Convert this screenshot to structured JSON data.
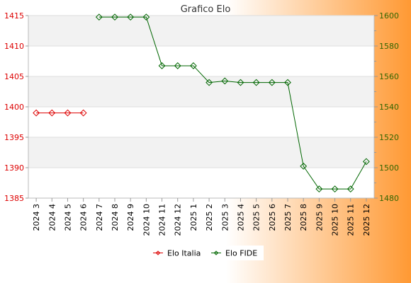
{
  "chart_data": {
    "type": "line",
    "title": "Grafico Elo",
    "categories": [
      "2024 3",
      "2024 4",
      "2024 5",
      "2024 6",
      "2024 7",
      "2024 8",
      "2024 9",
      "2024 10",
      "2024 11",
      "2024 12",
      "2025 1",
      "2025 2",
      "2025 3",
      "2025 4",
      "2025 5",
      "2025 6",
      "2025 7",
      "2025 8",
      "2025 9",
      "2025 10",
      "2025 11",
      "2025 12"
    ],
    "y_left": {
      "range": [
        1385,
        1415
      ],
      "ticks": [
        1385,
        1390,
        1395,
        1400,
        1405,
        1410,
        1415
      ],
      "color": "#dd0000"
    },
    "y_right": {
      "range": [
        1480,
        1600
      ],
      "ticks": [
        1480,
        1500,
        1520,
        1540,
        1560,
        1580,
        1600
      ],
      "color": "#336600"
    },
    "series": [
      {
        "name": "Elo Italia",
        "axis": "left",
        "color": "#dd0000",
        "values": [
          1399,
          1399,
          1399,
          1399,
          null,
          null,
          null,
          null,
          null,
          null,
          null,
          null,
          null,
          null,
          null,
          null,
          null,
          null,
          null,
          null,
          null,
          null
        ]
      },
      {
        "name": "Elo FIDE",
        "axis": "right",
        "color": "#006600",
        "values": [
          null,
          null,
          null,
          null,
          1599,
          1599,
          1599,
          1599,
          1567,
          1567,
          1567,
          1556,
          1557,
          1556,
          1556,
          1556,
          1556,
          1501,
          1486,
          1486,
          1486,
          1504
        ]
      }
    ],
    "grid": true,
    "legend": "bottom"
  },
  "colors": {
    "background_left": "#ffffff",
    "background_right": "#ff9933",
    "plot_band": "#f2f2f2"
  }
}
